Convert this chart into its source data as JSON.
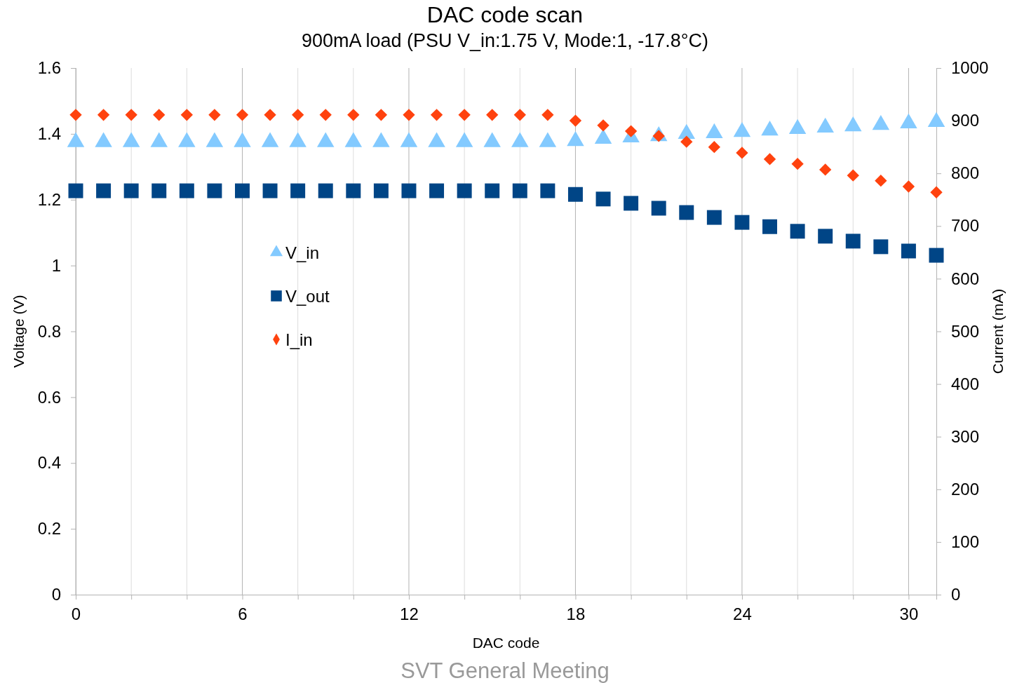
{
  "chart_data": {
    "type": "scatter",
    "title": "DAC code scan",
    "subtitle": "900mA load (PSU V_in:1.75 V, Mode:1, -17.8°C)",
    "xlabel": "DAC code",
    "ylabel": "Voltage (V)",
    "y2label": "Current (mA)",
    "x": [
      0,
      1,
      2,
      3,
      4,
      5,
      6,
      7,
      8,
      9,
      10,
      11,
      12,
      13,
      14,
      15,
      16,
      17,
      18,
      19,
      20,
      21,
      22,
      23,
      24,
      25,
      26,
      27,
      28,
      29,
      30,
      31
    ],
    "series": [
      {
        "name": "V_in",
        "color": "#83caff",
        "marker": "triangle",
        "values": [
          1.375,
          1.375,
          1.375,
          1.375,
          1.375,
          1.375,
          1.375,
          1.375,
          1.375,
          1.375,
          1.375,
          1.375,
          1.375,
          1.375,
          1.375,
          1.375,
          1.375,
          1.375,
          1.378,
          1.385,
          1.389,
          1.393,
          1.4,
          1.402,
          1.406,
          1.41,
          1.415,
          1.419,
          1.423,
          1.427,
          1.432,
          1.436
        ]
      },
      {
        "name": "V_out",
        "color": "#004586",
        "marker": "square",
        "values": [
          1.227,
          1.227,
          1.227,
          1.227,
          1.227,
          1.227,
          1.227,
          1.227,
          1.227,
          1.227,
          1.227,
          1.227,
          1.227,
          1.227,
          1.227,
          1.227,
          1.227,
          1.227,
          1.216,
          1.202,
          1.189,
          1.174,
          1.161,
          1.146,
          1.131,
          1.118,
          1.104,
          1.089,
          1.074,
          1.057,
          1.044,
          1.031
        ]
      },
      {
        "name": "I_in",
        "color": "#ff420e",
        "marker": "diamond",
        "axis": "y2",
        "values": [
          911,
          911,
          911,
          911,
          911,
          911,
          911,
          911,
          911,
          911,
          911,
          911,
          911,
          911,
          911,
          911,
          911,
          911,
          900,
          891,
          880,
          871,
          860,
          850,
          839,
          827,
          818,
          807,
          796,
          786,
          775,
          764
        ]
      }
    ],
    "xlim": [
      0,
      31
    ],
    "xticks": [
      0,
      {
        "value": 2,
        "label": null
      },
      {
        "value": 4,
        "label": null
      },
      6,
      {
        "value": 8,
        "label": null
      },
      {
        "value": 10,
        "label": null
      },
      12,
      {
        "value": 14,
        "label": null
      },
      {
        "value": 16,
        "label": null
      },
      18,
      {
        "value": 20,
        "label": null
      },
      {
        "value": 22,
        "label": null
      },
      24,
      {
        "value": 26,
        "label": null
      },
      {
        "value": 28,
        "label": null
      },
      30
    ],
    "ylim": [
      0,
      1.6
    ],
    "yticks": [
      0,
      0.2,
      0.4,
      0.6,
      0.8,
      1,
      1.2,
      1.4,
      1.6
    ],
    "y2lim": [
      0,
      1000
    ],
    "y2ticks": [
      0,
      100,
      200,
      300,
      400,
      500,
      600,
      700,
      800,
      900,
      1000
    ],
    "grid": "x",
    "legend": "left",
    "annotations": [
      "SVT General Meeting"
    ]
  }
}
